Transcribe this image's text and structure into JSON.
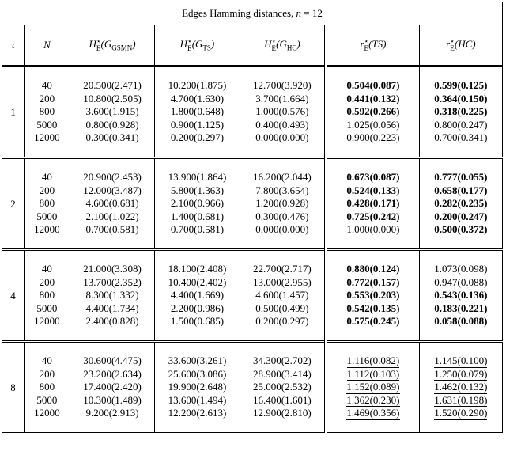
{
  "title": {
    "text": "Edges Hamming distances, ",
    "var": "n",
    "rest": " = 12"
  },
  "headers": [
    {
      "main": "τ"
    },
    {
      "main": "N"
    },
    {
      "main": "H",
      "sup": "⋆",
      "sub": "E",
      "arg": "(G",
      "argsub": "GSMN",
      "argend": ")"
    },
    {
      "main": "H",
      "sup": "⋆",
      "sub": "E",
      "arg": "(G",
      "argsub": "TS",
      "argend": ")"
    },
    {
      "main": "H",
      "sup": "⋆",
      "sub": "E",
      "arg": "(G",
      "argsub": "HC",
      "argend": ")"
    },
    {
      "main": "r",
      "sup": "⋆",
      "sub": "E",
      "arg": "(TS)"
    },
    {
      "main": "r",
      "sup": "⋆",
      "sub": "E",
      "arg": "(HC)"
    }
  ],
  "groups": [
    {
      "tau": "1",
      "underline": false,
      "rows": [
        {
          "N": "40",
          "cells": [
            "20.500(2.471)",
            "10.200(1.875)",
            "12.700(3.920)",
            "0.504(0.087)",
            "0.599(0.125)"
          ],
          "bold": [
            false,
            false,
            false,
            true,
            true
          ]
        },
        {
          "N": "200",
          "cells": [
            "10.800(2.505)",
            "4.700(1.630)",
            "3.700(1.664)",
            "0.441(0.132)",
            "0.364(0.150)"
          ],
          "bold": [
            false,
            false,
            false,
            true,
            true
          ]
        },
        {
          "N": "800",
          "cells": [
            "3.600(1.915)",
            "1.800(0.648)",
            "1.000(0.576)",
            "0.592(0.266)",
            "0.318(0.225)"
          ],
          "bold": [
            false,
            false,
            false,
            true,
            true
          ]
        },
        {
          "N": "5000",
          "cells": [
            "0.800(0.928)",
            "0.900(1.125)",
            "0.400(0.493)",
            "1.025(0.056)",
            "0.800(0.247)"
          ],
          "bold": [
            false,
            false,
            false,
            false,
            false
          ]
        },
        {
          "N": "12000",
          "cells": [
            "0.300(0.341)",
            "0.200(0.297)",
            "0.000(0.000)",
            "0.900(0.223)",
            "0.700(0.341)"
          ],
          "bold": [
            false,
            false,
            false,
            false,
            false
          ]
        }
      ]
    },
    {
      "tau": "2",
      "underline": false,
      "rows": [
        {
          "N": "40",
          "cells": [
            "20.900(2.453)",
            "13.900(1.864)",
            "16.200(2.044)",
            "0.673(0.087)",
            "0.777(0.055)"
          ],
          "bold": [
            false,
            false,
            false,
            true,
            true
          ]
        },
        {
          "N": "200",
          "cells": [
            "12.000(3.487)",
            "5.800(1.363)",
            "7.800(3.654)",
            "0.524(0.133)",
            "0.658(0.177)"
          ],
          "bold": [
            false,
            false,
            false,
            true,
            true
          ]
        },
        {
          "N": "800",
          "cells": [
            "4.600(0.681)",
            "2.100(0.966)",
            "1.200(0.928)",
            "0.428(0.171)",
            "0.282(0.235)"
          ],
          "bold": [
            false,
            false,
            false,
            true,
            true
          ]
        },
        {
          "N": "5000",
          "cells": [
            "2.100(1.022)",
            "1.400(0.681)",
            "0.300(0.476)",
            "0.725(0.242)",
            "0.200(0.247)"
          ],
          "bold": [
            false,
            false,
            false,
            true,
            true
          ]
        },
        {
          "N": "12000",
          "cells": [
            "0.700(0.581)",
            "0.700(0.581)",
            "0.000(0.000)",
            "1.000(0.000)",
            "0.500(0.372)"
          ],
          "bold": [
            false,
            false,
            false,
            false,
            true
          ]
        }
      ]
    },
    {
      "tau": "4",
      "underline": false,
      "rows": [
        {
          "N": "40",
          "cells": [
            "21.000(3.308)",
            "18.100(2.408)",
            "22.700(2.717)",
            "0.880(0.124)",
            "1.073(0.098)"
          ],
          "bold": [
            false,
            false,
            false,
            true,
            false
          ]
        },
        {
          "N": "200",
          "cells": [
            "13.700(2.352)",
            "10.400(2.402)",
            "13.000(2.955)",
            "0.772(0.157)",
            "0.947(0.088)"
          ],
          "bold": [
            false,
            false,
            false,
            true,
            false
          ]
        },
        {
          "N": "800",
          "cells": [
            "8.300(1.332)",
            "4.400(1.669)",
            "4.600(1.457)",
            "0.553(0.203)",
            "0.543(0.136)"
          ],
          "bold": [
            false,
            false,
            false,
            true,
            true
          ]
        },
        {
          "N": "5000",
          "cells": [
            "4.400(1.734)",
            "2.200(0.986)",
            "0.500(0.499)",
            "0.542(0.135)",
            "0.183(0.221)"
          ],
          "bold": [
            false,
            false,
            false,
            true,
            true
          ]
        },
        {
          "N": "12000",
          "cells": [
            "2.400(0.828)",
            "1.500(0.685)",
            "0.200(0.297)",
            "0.575(0.245)",
            "0.058(0.088)"
          ],
          "bold": [
            false,
            false,
            false,
            true,
            true
          ]
        }
      ]
    },
    {
      "tau": "8",
      "underline": true,
      "rows": [
        {
          "N": "40",
          "cells": [
            "30.600(4.475)",
            "33.600(3.261)",
            "34.300(2.702)",
            "1.116(0.082)",
            "1.145(0.100)"
          ],
          "bold": [
            false,
            false,
            false,
            false,
            false
          ]
        },
        {
          "N": "200",
          "cells": [
            "23.200(2.634)",
            "25.600(3.086)",
            "28.900(3.414)",
            "1.112(0.103)",
            "1.250(0.079)"
          ],
          "bold": [
            false,
            false,
            false,
            false,
            false
          ]
        },
        {
          "N": "800",
          "cells": [
            "17.400(2.420)",
            "19.900(2.648)",
            "25.000(2.532)",
            "1.152(0.089)",
            "1.462(0.132)"
          ],
          "bold": [
            false,
            false,
            false,
            false,
            false
          ]
        },
        {
          "N": "5000",
          "cells": [
            "10.300(1.489)",
            "13.600(1.494)",
            "16.400(1.601)",
            "1.362(0.230)",
            "1.631(0.198)"
          ],
          "bold": [
            false,
            false,
            false,
            false,
            false
          ]
        },
        {
          "N": "12000",
          "cells": [
            "9.200(2.913)",
            "12.200(2.613)",
            "12.900(2.810)",
            "1.469(0.356)",
            "1.520(0.290)"
          ],
          "bold": [
            false,
            false,
            false,
            false,
            false
          ]
        }
      ]
    }
  ]
}
